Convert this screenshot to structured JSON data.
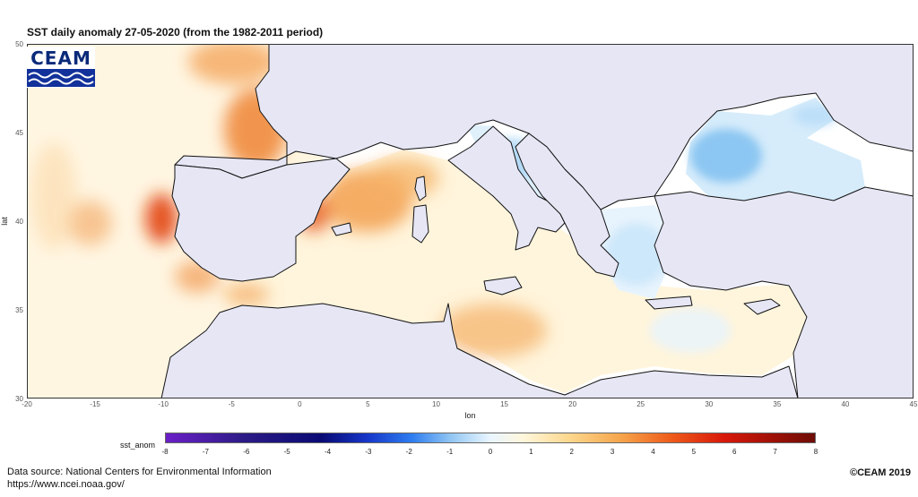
{
  "title": "SST daily anomaly 27-05-2020 (from the 1982-2011 period)",
  "logo": {
    "text": "CEAM"
  },
  "axes": {
    "x_label": "lon",
    "y_label": "lat",
    "x_ticks": [
      "-20",
      "-15",
      "-10",
      "-5",
      "0",
      "5",
      "10",
      "15",
      "20",
      "25",
      "30",
      "35",
      "40",
      "45"
    ],
    "y_ticks": [
      "50",
      "45",
      "40",
      "35",
      "30"
    ],
    "x_range": [
      -20,
      45
    ],
    "y_range": [
      30,
      50
    ]
  },
  "legend": {
    "label": "sst_anom",
    "ticks": [
      "-8",
      "-7",
      "-6",
      "-5",
      "-4",
      "-3",
      "-2",
      "-1",
      "0",
      "1",
      "2",
      "3",
      "4",
      "5",
      "6",
      "7",
      "8"
    ],
    "range": [
      -8,
      8
    ]
  },
  "source": {
    "line1": "Data source: National Centers for Environmental Information",
    "line2": "https://www.ncei.noaa.gov/"
  },
  "copyright": "©CEAM 2019",
  "colors": {
    "land": "#e6e6f5",
    "warm": "#ee7a30",
    "cool": "#9fd0f2",
    "neutral": "#fff6e0"
  }
}
